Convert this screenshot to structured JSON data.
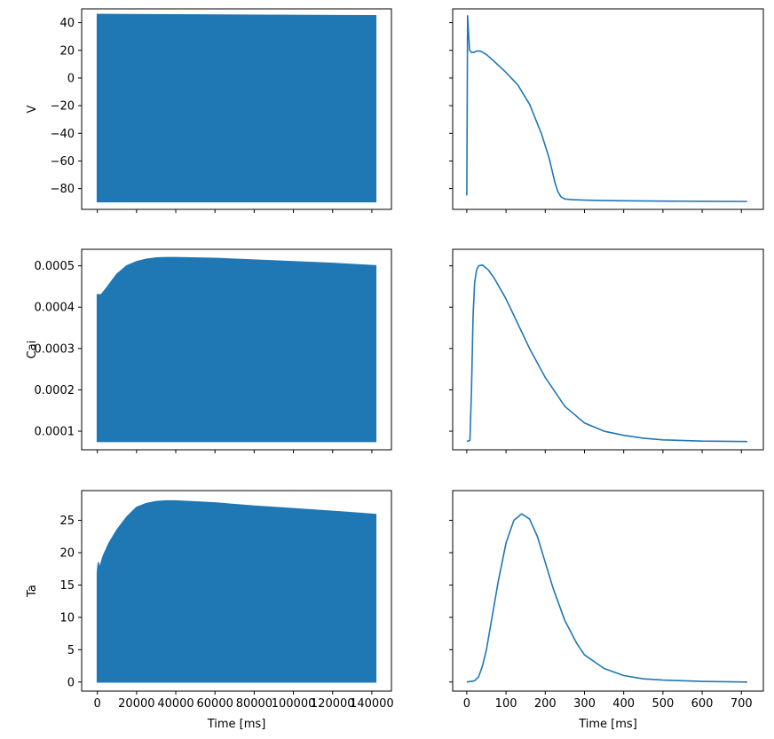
{
  "chart_data": [
    {
      "type": "line",
      "panel": "V-full",
      "ylabel": "V",
      "xlabel": "",
      "xlim": [
        -8000,
        150000
      ],
      "ylim": [
        -95,
        50
      ],
      "xticks": [
        0,
        20000,
        40000,
        60000,
        80000,
        100000,
        120000,
        140000
      ],
      "xtick_labels": [],
      "yticks": [
        -80,
        -60,
        -40,
        -20,
        0,
        20,
        40
      ],
      "ytick_labels": [
        "−80",
        "−60",
        "−40",
        "−20",
        "0",
        "20",
        "40"
      ],
      "color": "#1f77b4",
      "band": {
        "x": [
          0,
          142000
        ],
        "upper": [
          46,
          45
        ],
        "lower": [
          -89.5,
          -89.5
        ]
      },
      "series": []
    },
    {
      "type": "line",
      "panel": "V-beat",
      "ylabel": "",
      "xlabel": "",
      "xlim": [
        -36,
        756
      ],
      "ylim": [
        -95,
        50
      ],
      "xticks": [
        0,
        100,
        200,
        300,
        400,
        500,
        600,
        700
      ],
      "xtick_labels": [],
      "yticks": [
        -80,
        -60,
        -40,
        -20,
        0,
        20,
        40
      ],
      "ytick_labels": [],
      "color": "#1f77b4",
      "series": [
        {
          "x": [
            0,
            2,
            4,
            7,
            12,
            18,
            25,
            35,
            50,
            70,
            100,
            130,
            160,
            190,
            210,
            225,
            232,
            240,
            250,
            270,
            300,
            350,
            400,
            500,
            600,
            715
          ],
          "y": [
            -85,
            45,
            35,
            20,
            18.5,
            18.5,
            19.5,
            19.5,
            17,
            12,
            4,
            -5,
            -19,
            -40,
            -58,
            -76,
            -82,
            -86,
            -87.5,
            -88,
            -88.3,
            -88.6,
            -88.8,
            -89,
            -89.2,
            -89.3
          ]
        }
      ]
    },
    {
      "type": "line",
      "panel": "Cai-full",
      "ylabel": "Cai",
      "xlabel": "",
      "xlim": [
        -8000,
        150000
      ],
      "ylim": [
        5.5e-05,
        0.00054
      ],
      "xticks": [
        0,
        20000,
        40000,
        60000,
        80000,
        100000,
        120000,
        140000
      ],
      "xtick_labels": [],
      "yticks": [
        0.0001,
        0.0002,
        0.0003,
        0.0004,
        0.0005
      ],
      "ytick_labels": [
        "0.0001",
        "0.0002",
        "0.0003",
        "0.0004",
        "0.0005"
      ],
      "color": "#1f77b4",
      "band": {
        "x": [
          0,
          2000,
          5000,
          10000,
          15000,
          20000,
          25000,
          30000,
          35000,
          40000,
          60000,
          80000,
          100000,
          120000,
          142000
        ],
        "upper": [
          0.00043,
          0.00043,
          0.000448,
          0.00048,
          0.0005,
          0.00051,
          0.000516,
          0.000519,
          0.00052,
          0.00052,
          0.000518,
          0.000514,
          0.00051,
          0.000506,
          0.0005
        ],
        "lower": [
          7.5e-05,
          7.5e-05,
          7.5e-05,
          7.5e-05,
          7.5e-05,
          7.5e-05,
          7.5e-05,
          7.5e-05,
          7.5e-05,
          7.5e-05,
          7.5e-05,
          7.5e-05,
          7.5e-05,
          7.5e-05,
          7.5e-05
        ]
      },
      "series": []
    },
    {
      "type": "line",
      "panel": "Cai-beat",
      "ylabel": "",
      "xlabel": "",
      "xlim": [
        -36,
        756
      ],
      "ylim": [
        5.5e-05,
        0.00054
      ],
      "xticks": [
        0,
        100,
        200,
        300,
        400,
        500,
        600,
        700
      ],
      "xtick_labels": [],
      "yticks": [
        0.0001,
        0.0002,
        0.0003,
        0.0004,
        0.0005
      ],
      "ytick_labels": [],
      "color": "#1f77b4",
      "series": [
        {
          "x": [
            0,
            8,
            12,
            16,
            20,
            25,
            30,
            40,
            55,
            70,
            100,
            130,
            160,
            200,
            250,
            300,
            350,
            400,
            450,
            500,
            600,
            715
          ],
          "y": [
            7.5e-05,
            7.8e-05,
            0.0002,
            0.00038,
            0.00046,
            0.00049,
            0.0005,
            0.000502,
            0.00049,
            0.00047,
            0.00042,
            0.00036,
            0.0003,
            0.00023,
            0.00016,
            0.00012,
            0.0001,
            9e-05,
            8.3e-05,
            7.9e-05,
            7.6e-05,
            7.5e-05
          ]
        }
      ]
    },
    {
      "type": "line",
      "panel": "Ta-full",
      "ylabel": "Ta",
      "xlabel": "Time [ms]",
      "xlim": [
        -8000,
        150000
      ],
      "ylim": [
        -1.4,
        29.6
      ],
      "xticks": [
        0,
        20000,
        40000,
        60000,
        80000,
        100000,
        120000,
        140000
      ],
      "xtick_labels": [
        "0",
        "20000",
        "40000",
        "60000",
        "80000",
        "100000",
        "120000",
        "140000"
      ],
      "yticks": [
        0,
        5,
        10,
        15,
        20,
        25
      ],
      "ytick_labels": [
        "0",
        "5",
        "10",
        "15",
        "20",
        "25"
      ],
      "color": "#1f77b4",
      "band": {
        "x": [
          0,
          500,
          1000,
          3000,
          6000,
          10000,
          15000,
          20000,
          25000,
          30000,
          35000,
          40000,
          60000,
          80000,
          100000,
          120000,
          142000
        ],
        "upper": [
          17,
          18.5,
          17.5,
          19.5,
          21.5,
          23.5,
          25.5,
          27,
          27.6,
          27.9,
          28,
          28,
          27.7,
          27.2,
          26.8,
          26.4,
          25.9
        ],
        "lower": [
          0,
          0,
          0,
          0,
          0,
          0,
          0,
          0,
          0,
          0,
          0,
          0,
          0,
          0,
          0,
          0,
          0
        ]
      },
      "series": []
    },
    {
      "type": "line",
      "panel": "Ta-beat",
      "ylabel": "",
      "xlabel": "Time [ms]",
      "xlim": [
        -36,
        756
      ],
      "ylim": [
        -1.4,
        29.6
      ],
      "xticks": [
        0,
        100,
        200,
        300,
        400,
        500,
        600,
        700
      ],
      "xtick_labels": [
        "0",
        "100",
        "200",
        "300",
        "400",
        "500",
        "600",
        "700"
      ],
      "yticks": [
        0,
        5,
        10,
        15,
        20,
        25
      ],
      "ytick_labels": [],
      "color": "#1f77b4",
      "series": [
        {
          "x": [
            0,
            20,
            30,
            40,
            50,
            60,
            80,
            100,
            120,
            140,
            160,
            180,
            200,
            220,
            250,
            280,
            300,
            350,
            400,
            450,
            500,
            600,
            715
          ],
          "y": [
            0,
            0.2,
            0.8,
            2.5,
            5,
            8.5,
            15.5,
            21.5,
            25,
            26,
            25.2,
            22.5,
            18.5,
            14.5,
            9.5,
            6,
            4.2,
            2.1,
            1,
            0.5,
            0.3,
            0.1,
            0
          ]
        }
      ]
    }
  ]
}
